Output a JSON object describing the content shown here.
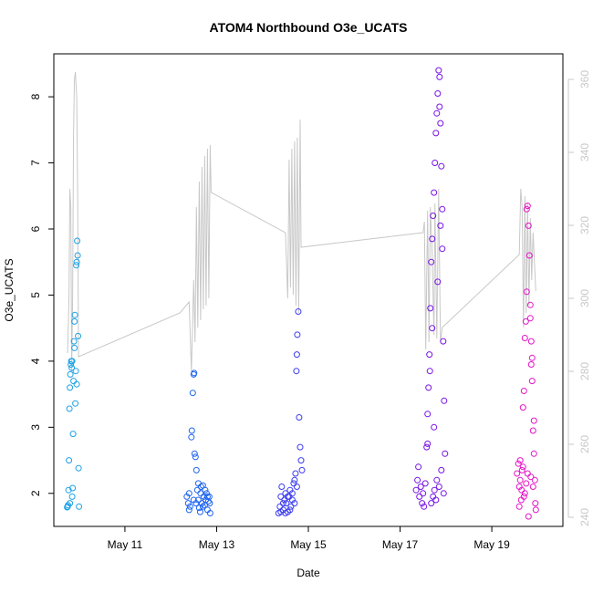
{
  "chart_data": {
    "type": "scatter",
    "title": "ATOM4 Northbound O3e_UCATS",
    "xlabel": "Date",
    "ylabel": "O3e_UCATS",
    "x_ticks": [
      "May 11",
      "May 13",
      "May 15",
      "May 17",
      "May 19"
    ],
    "x_tick_days": [
      11,
      13,
      15,
      17,
      19
    ],
    "xlim": [
      9.45,
      20.55
    ],
    "ylim": [
      1.5,
      8.65
    ],
    "y_ticks": [
      2,
      3,
      4,
      5,
      6,
      7,
      8
    ],
    "y_right_ticks": [
      240,
      260,
      280,
      300,
      320,
      340,
      360
    ],
    "y_right_lim": [
      237.5,
      367
    ],
    "right_axis_color": "#c8c8c8",
    "line_color": "#c8c8c8",
    "series": [
      {
        "color": "#1ea0e6",
        "points": [
          [
            9.75,
            1.8
          ],
          [
            9.76,
            1.82
          ],
          [
            9.77,
            2.05
          ],
          [
            9.78,
            2.5
          ],
          [
            9.79,
            3.28
          ],
          [
            9.8,
            3.6
          ],
          [
            9.81,
            3.8
          ],
          [
            9.82,
            3.95
          ],
          [
            9.83,
            4.0
          ],
          [
            9.84,
            3.9
          ],
          [
            9.85,
            1.95
          ],
          [
            9.86,
            2.08
          ],
          [
            9.87,
            2.9
          ],
          [
            9.88,
            3.7
          ],
          [
            9.89,
            4.3
          ],
          [
            9.9,
            4.6
          ],
          [
            9.91,
            4.7
          ],
          [
            9.92,
            3.36
          ],
          [
            9.93,
            3.85
          ],
          [
            9.94,
            5.45
          ],
          [
            9.95,
            5.5
          ],
          [
            9.96,
            5.82
          ],
          [
            9.97,
            5.6
          ],
          [
            9.98,
            4.38
          ],
          [
            9.99,
            2.38
          ],
          [
            10.0,
            1.8
          ],
          [
            9.74,
            1.79
          ],
          [
            9.8,
            1.85
          ],
          [
            9.85,
            4.0
          ],
          [
            9.9,
            4.2
          ],
          [
            9.95,
            3.65
          ]
        ]
      },
      {
        "color": "#1e64f0",
        "points": [
          [
            12.35,
            1.95
          ],
          [
            12.38,
            1.85
          ],
          [
            12.4,
            2.0
          ],
          [
            12.42,
            1.8
          ],
          [
            12.45,
            2.85
          ],
          [
            12.46,
            2.95
          ],
          [
            12.48,
            3.52
          ],
          [
            12.5,
            3.8
          ],
          [
            12.51,
            3.82
          ],
          [
            12.52,
            2.6
          ],
          [
            12.54,
            2.55
          ],
          [
            12.56,
            2.35
          ],
          [
            12.58,
            2.05
          ],
          [
            12.6,
            1.9
          ],
          [
            12.62,
            1.78
          ],
          [
            12.64,
            1.72
          ],
          [
            12.66,
            2.1
          ],
          [
            12.68,
            1.85
          ],
          [
            12.7,
            2.12
          ],
          [
            12.72,
            1.95
          ],
          [
            12.74,
            1.82
          ],
          [
            12.76,
            1.9
          ],
          [
            12.78,
            2.0
          ],
          [
            12.8,
            1.75
          ],
          [
            12.82,
            1.88
          ],
          [
            12.84,
            1.95
          ],
          [
            12.86,
            1.7
          ],
          [
            12.5,
            1.9
          ],
          [
            12.55,
            1.85
          ],
          [
            12.65,
            2.0
          ],
          [
            12.7,
            1.8
          ],
          [
            12.75,
            2.05
          ],
          [
            12.8,
            1.95
          ],
          [
            12.85,
            1.85
          ],
          [
            12.4,
            1.75
          ],
          [
            12.6,
            2.15
          ]
        ]
      },
      {
        "color": "#3c3cf0",
        "points": [
          [
            14.35,
            1.7
          ],
          [
            14.38,
            1.8
          ],
          [
            14.4,
            1.95
          ],
          [
            14.42,
            2.1
          ],
          [
            14.45,
            1.75
          ],
          [
            14.48,
            1.9
          ],
          [
            14.5,
            2.0
          ],
          [
            14.52,
            1.85
          ],
          [
            14.55,
            1.72
          ],
          [
            14.58,
            1.95
          ],
          [
            14.6,
            2.05
          ],
          [
            14.62,
            1.8
          ],
          [
            14.65,
            1.9
          ],
          [
            14.68,
            2.15
          ],
          [
            14.7,
            2.2
          ],
          [
            14.72,
            2.3
          ],
          [
            14.74,
            3.85
          ],
          [
            14.75,
            4.1
          ],
          [
            14.76,
            4.4
          ],
          [
            14.78,
            4.75
          ],
          [
            14.8,
            3.15
          ],
          [
            14.82,
            2.7
          ],
          [
            14.84,
            2.5
          ],
          [
            14.86,
            2.35
          ],
          [
            14.5,
            1.7
          ],
          [
            14.55,
            1.95
          ],
          [
            14.6,
            1.75
          ],
          [
            14.65,
            2.0
          ],
          [
            14.7,
            1.85
          ],
          [
            14.75,
            2.1
          ],
          [
            14.45,
            1.85
          ],
          [
            14.4,
            1.72
          ]
        ]
      },
      {
        "color": "#7814e6",
        "points": [
          [
            17.35,
            2.05
          ],
          [
            17.38,
            2.2
          ],
          [
            17.4,
            2.4
          ],
          [
            17.42,
            1.95
          ],
          [
            17.45,
            2.1
          ],
          [
            17.48,
            1.85
          ],
          [
            17.5,
            2.0
          ],
          [
            17.52,
            1.8
          ],
          [
            17.55,
            2.15
          ],
          [
            17.58,
            2.7
          ],
          [
            17.6,
            3.2
          ],
          [
            17.62,
            3.6
          ],
          [
            17.64,
            4.1
          ],
          [
            17.66,
            4.8
          ],
          [
            17.68,
            5.5
          ],
          [
            17.7,
            5.85
          ],
          [
            17.72,
            6.2
          ],
          [
            17.74,
            6.55
          ],
          [
            17.76,
            7.0
          ],
          [
            17.78,
            7.45
          ],
          [
            17.8,
            7.75
          ],
          [
            17.82,
            8.05
          ],
          [
            17.84,
            8.4
          ],
          [
            17.86,
            8.3
          ],
          [
            17.88,
            7.6
          ],
          [
            17.9,
            6.95
          ],
          [
            17.92,
            5.7
          ],
          [
            17.94,
            4.3
          ],
          [
            17.96,
            3.4
          ],
          [
            17.98,
            2.6
          ],
          [
            17.68,
            1.85
          ],
          [
            17.72,
            1.95
          ],
          [
            17.75,
            2.05
          ],
          [
            17.78,
            1.9
          ],
          [
            17.8,
            2.2
          ],
          [
            17.85,
            2.1
          ],
          [
            17.9,
            2.35
          ],
          [
            17.95,
            2.0
          ],
          [
            17.65,
            3.85
          ],
          [
            17.7,
            4.5
          ],
          [
            17.74,
            3.0
          ],
          [
            17.82,
            5.2
          ],
          [
            17.88,
            6.05
          ],
          [
            17.92,
            6.3
          ],
          [
            17.86,
            7.85
          ],
          [
            17.6,
            2.75
          ]
        ]
      },
      {
        "color": "#e614c8",
        "points": [
          [
            19.55,
            2.3
          ],
          [
            19.58,
            2.45
          ],
          [
            19.6,
            2.1
          ],
          [
            19.62,
            2.2
          ],
          [
            19.64,
            1.9
          ],
          [
            19.66,
            2.35
          ],
          [
            19.68,
            3.3
          ],
          [
            19.7,
            3.55
          ],
          [
            19.72,
            4.35
          ],
          [
            19.74,
            4.6
          ],
          [
            19.76,
            5.05
          ],
          [
            19.78,
            6.35
          ],
          [
            19.8,
            6.05
          ],
          [
            19.82,
            5.6
          ],
          [
            19.84,
            4.85
          ],
          [
            19.86,
            4.3
          ],
          [
            19.88,
            3.7
          ],
          [
            19.9,
            2.95
          ],
          [
            19.92,
            2.6
          ],
          [
            19.94,
            2.2
          ],
          [
            19.96,
            1.75
          ],
          [
            19.6,
            1.8
          ],
          [
            19.65,
            2.05
          ],
          [
            19.7,
            1.95
          ],
          [
            19.75,
            2.15
          ],
          [
            19.8,
            1.65
          ],
          [
            19.85,
            2.25
          ],
          [
            19.9,
            2.1
          ],
          [
            19.95,
            1.85
          ],
          [
            19.62,
            2.5
          ],
          [
            19.68,
            2.4
          ],
          [
            19.72,
            2.0
          ],
          [
            19.78,
            2.3
          ],
          [
            19.84,
            4.65
          ],
          [
            19.86,
            3.95
          ],
          [
            19.88,
            4.05
          ],
          [
            19.92,
            3.1
          ],
          [
            19.76,
            6.3
          ]
        ]
      }
    ],
    "secondary_line": [
      [
        9.75,
        285
      ],
      [
        9.78,
        300
      ],
      [
        9.8,
        330
      ],
      [
        9.82,
        325
      ],
      [
        9.84,
        280
      ],
      [
        9.86,
        300
      ],
      [
        9.88,
        345
      ],
      [
        9.9,
        360
      ],
      [
        9.92,
        362
      ],
      [
        9.95,
        355
      ],
      [
        9.97,
        330
      ],
      [
        9.99,
        284
      ],
      [
        12.2,
        296
      ],
      [
        12.4,
        299
      ],
      [
        12.45,
        280
      ],
      [
        12.5,
        305
      ],
      [
        12.53,
        288
      ],
      [
        12.56,
        325
      ],
      [
        12.59,
        292
      ],
      [
        12.62,
        332
      ],
      [
        12.65,
        294
      ],
      [
        12.68,
        336
      ],
      [
        12.71,
        297
      ],
      [
        12.74,
        339
      ],
      [
        12.77,
        298
      ],
      [
        12.8,
        341
      ],
      [
        12.83,
        300
      ],
      [
        12.86,
        342
      ],
      [
        12.88,
        329
      ],
      [
        14.5,
        318
      ],
      [
        14.55,
        300
      ],
      [
        14.58,
        338
      ],
      [
        14.61,
        303
      ],
      [
        14.64,
        341
      ],
      [
        14.67,
        301
      ],
      [
        14.7,
        343
      ],
      [
        14.73,
        298
      ],
      [
        14.76,
        344
      ],
      [
        14.79,
        296
      ],
      [
        14.82,
        349
      ],
      [
        14.84,
        314
      ],
      [
        17.5,
        318
      ],
      [
        17.53,
        321
      ],
      [
        17.56,
        286
      ],
      [
        17.6,
        324
      ],
      [
        17.63,
        288
      ],
      [
        17.66,
        325
      ],
      [
        17.7,
        312
      ],
      [
        17.74,
        290
      ],
      [
        17.76,
        326
      ],
      [
        17.8,
        289
      ],
      [
        17.84,
        330
      ],
      [
        17.88,
        288
      ],
      [
        17.92,
        292
      ],
      [
        19.6,
        312
      ],
      [
        19.63,
        330
      ],
      [
        19.66,
        325
      ],
      [
        19.69,
        292
      ],
      [
        19.72,
        328
      ],
      [
        19.75,
        296
      ],
      [
        19.78,
        326
      ],
      [
        19.81,
        298
      ],
      [
        19.84,
        322
      ],
      [
        19.87,
        305
      ],
      [
        19.9,
        318
      ],
      [
        19.93,
        310
      ],
      [
        19.96,
        302
      ]
    ]
  }
}
